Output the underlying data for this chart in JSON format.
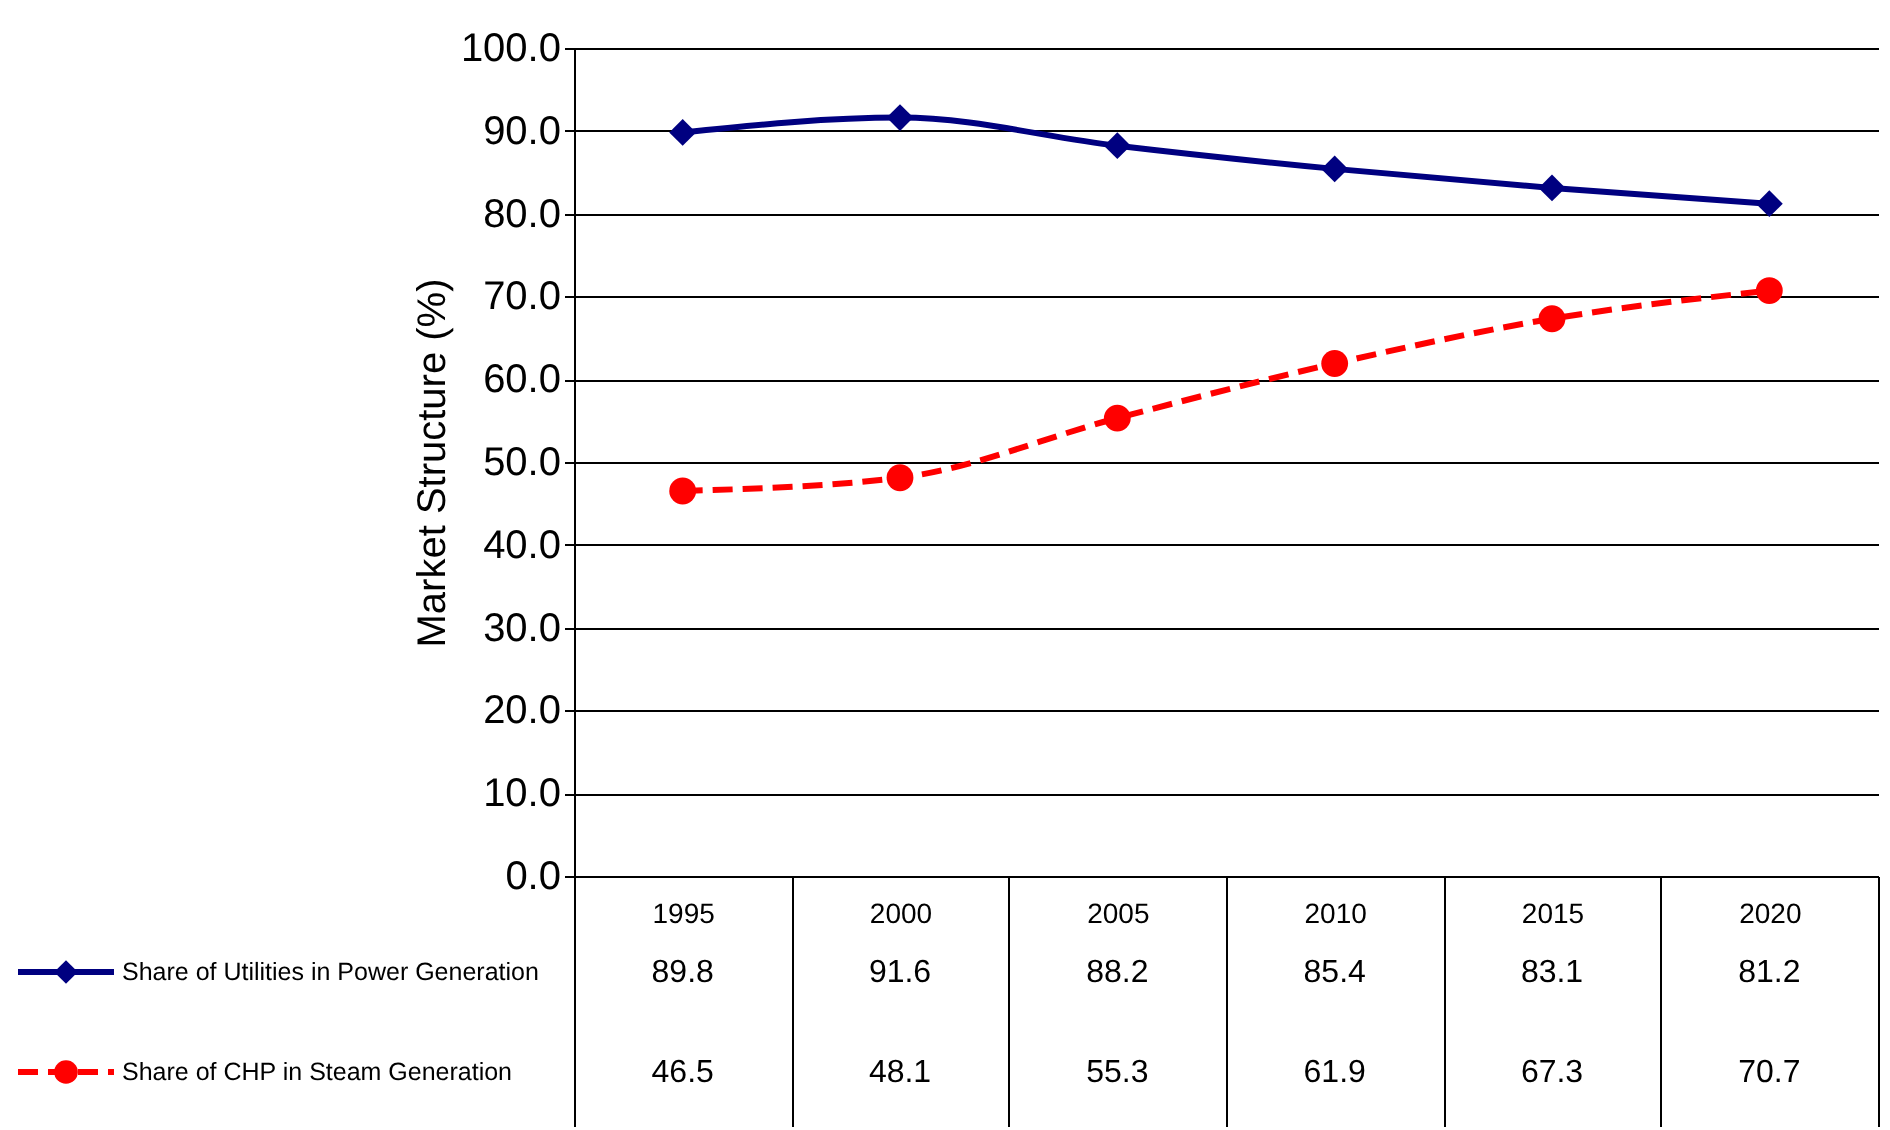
{
  "chart_data": {
    "type": "line",
    "ylabel": "Market Structure (%)",
    "categories": [
      "1995",
      "2000",
      "2005",
      "2010",
      "2015",
      "2020"
    ],
    "series": [
      {
        "name": "Share of Utilities in Power Generation",
        "color": "#000080",
        "marker": "diamond",
        "line_style": "solid",
        "values": [
          89.8,
          91.6,
          88.2,
          85.4,
          83.1,
          81.2
        ]
      },
      {
        "name": "Share of CHP in Steam Generation",
        "color": "#ff0000",
        "marker": "circle",
        "line_style": "dashed",
        "values": [
          46.5,
          48.1,
          55.3,
          61.9,
          67.3,
          70.7
        ]
      }
    ],
    "ylim": [
      0,
      100
    ],
    "yticks": [
      {
        "value": 0,
        "label": "0.0"
      },
      {
        "value": 10,
        "label": "10.0"
      },
      {
        "value": 20,
        "label": "20.0"
      },
      {
        "value": 30,
        "label": "30.0"
      },
      {
        "value": 40,
        "label": "40.0"
      },
      {
        "value": 50,
        "label": "50.0"
      },
      {
        "value": 60,
        "label": "60.0"
      },
      {
        "value": 70,
        "label": "70.0"
      },
      {
        "value": 80,
        "label": "80.0"
      },
      {
        "value": 90,
        "label": "90.0"
      },
      {
        "value": 100,
        "label": "100.0"
      }
    ],
    "grid": "y",
    "legend": "bottom",
    "data_labels": true
  }
}
